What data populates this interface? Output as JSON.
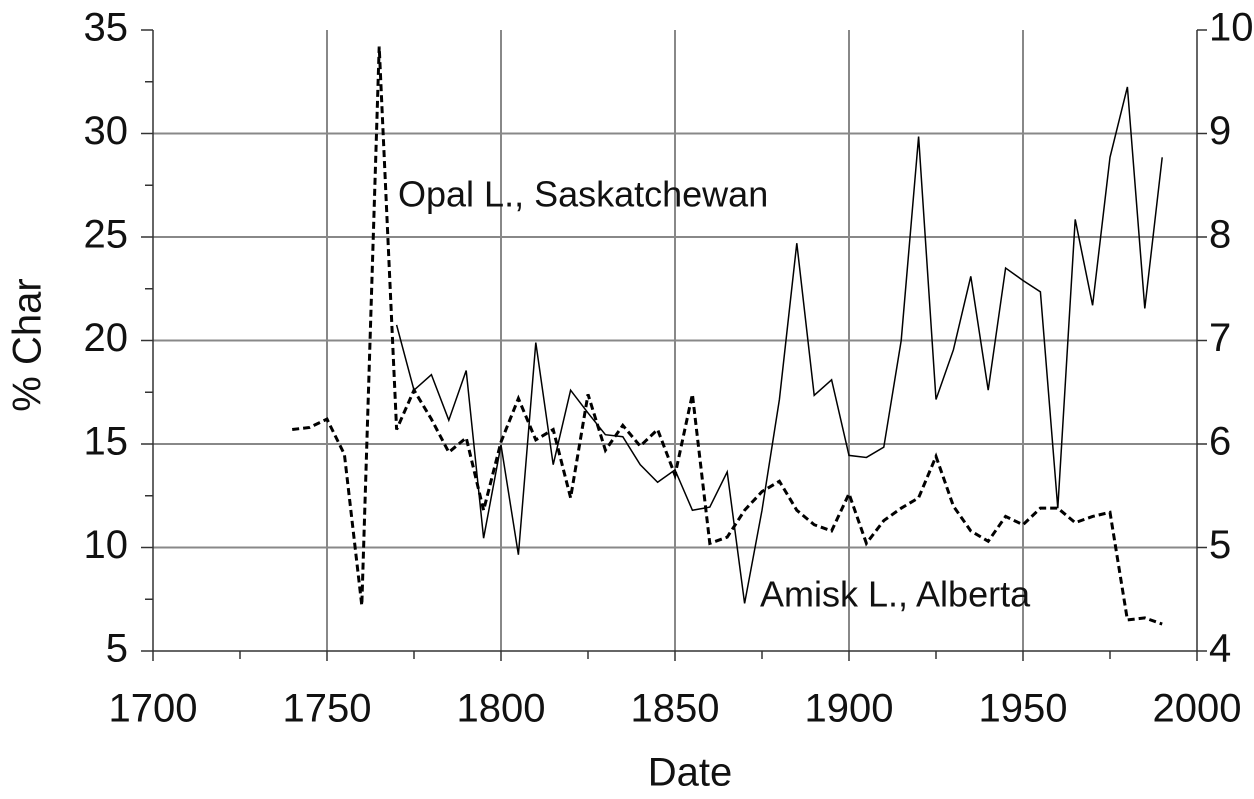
{
  "chart_data": {
    "type": "line",
    "xlabel": "Date",
    "ylabel": "% Char",
    "x": [
      1740,
      1745,
      1750,
      1755,
      1760,
      1765,
      1770,
      1775,
      1780,
      1785,
      1790,
      1795,
      1800,
      1805,
      1810,
      1815,
      1820,
      1825,
      1830,
      1835,
      1840,
      1845,
      1850,
      1855,
      1860,
      1865,
      1870,
      1875,
      1880,
      1885,
      1890,
      1895,
      1900,
      1905,
      1910,
      1915,
      1920,
      1925,
      1930,
      1935,
      1940,
      1945,
      1950,
      1955,
      1960,
      1965,
      1970,
      1975,
      1980,
      1985,
      1990
    ],
    "series": [
      {
        "name": "Opal L., Saskatchewan",
        "color": "#000000",
        "dash": true,
        "values": [
          15.7,
          15.8,
          16.2,
          14.5,
          7.2,
          34.2,
          15.7,
          17.6,
          16.2,
          14.6,
          15.3,
          11.8,
          15.1,
          17.2,
          15.2,
          15.7,
          12.4,
          17.4,
          14.7,
          15.9,
          14.9,
          15.7,
          13.5,
          17.4,
          10.2,
          10.5,
          11.8,
          12.7,
          13.2,
          11.8,
          11.1,
          10.8,
          12.6,
          10.2,
          11.3,
          11.9,
          12.4,
          14.4,
          12.0,
          10.8,
          10.3,
          11.5,
          11.1,
          11.9,
          11.9,
          11.2,
          11.5,
          11.7,
          6.5,
          6.6,
          6.3
        ]
      },
      {
        "name": "Amisk L., Alberta",
        "color": "#000000",
        "dash": false,
        "axis": "y2",
        "values": [
          null,
          null,
          null,
          null,
          null,
          null,
          7.15,
          6.52,
          6.67,
          6.23,
          6.71,
          5.09,
          5.99,
          4.93,
          6.98,
          5.8,
          6.52,
          6.3,
          6.09,
          6.07,
          5.8,
          5.63,
          5.75,
          5.36,
          5.39,
          5.73,
          4.46,
          5.36,
          6.43,
          7.94,
          6.47,
          6.62,
          5.89,
          5.87,
          5.97,
          7.0,
          8.97,
          6.43,
          6.91,
          7.62,
          6.52,
          7.7,
          7.58,
          7.47,
          5.38,
          8.17,
          7.34,
          8.77,
          9.45,
          7.31,
          8.77
        ]
      }
    ],
    "xlim": [
      1700,
      2000
    ],
    "xticks": [
      1700,
      1750,
      1800,
      1850,
      1900,
      1950,
      2000
    ],
    "xminorticks": [
      1725,
      1775,
      1825,
      1875,
      1925,
      1975
    ],
    "ylim": [
      5,
      35
    ],
    "yticks": [
      5,
      10,
      15,
      20,
      25,
      30,
      35
    ],
    "yminorticks": [
      7.5,
      12.5,
      17.5,
      22.5,
      27.5,
      32.5
    ],
    "y2lim": [
      4,
      10
    ],
    "y2ticks": [
      4,
      5,
      6,
      7,
      8,
      9,
      10
    ],
    "grid": true
  }
}
